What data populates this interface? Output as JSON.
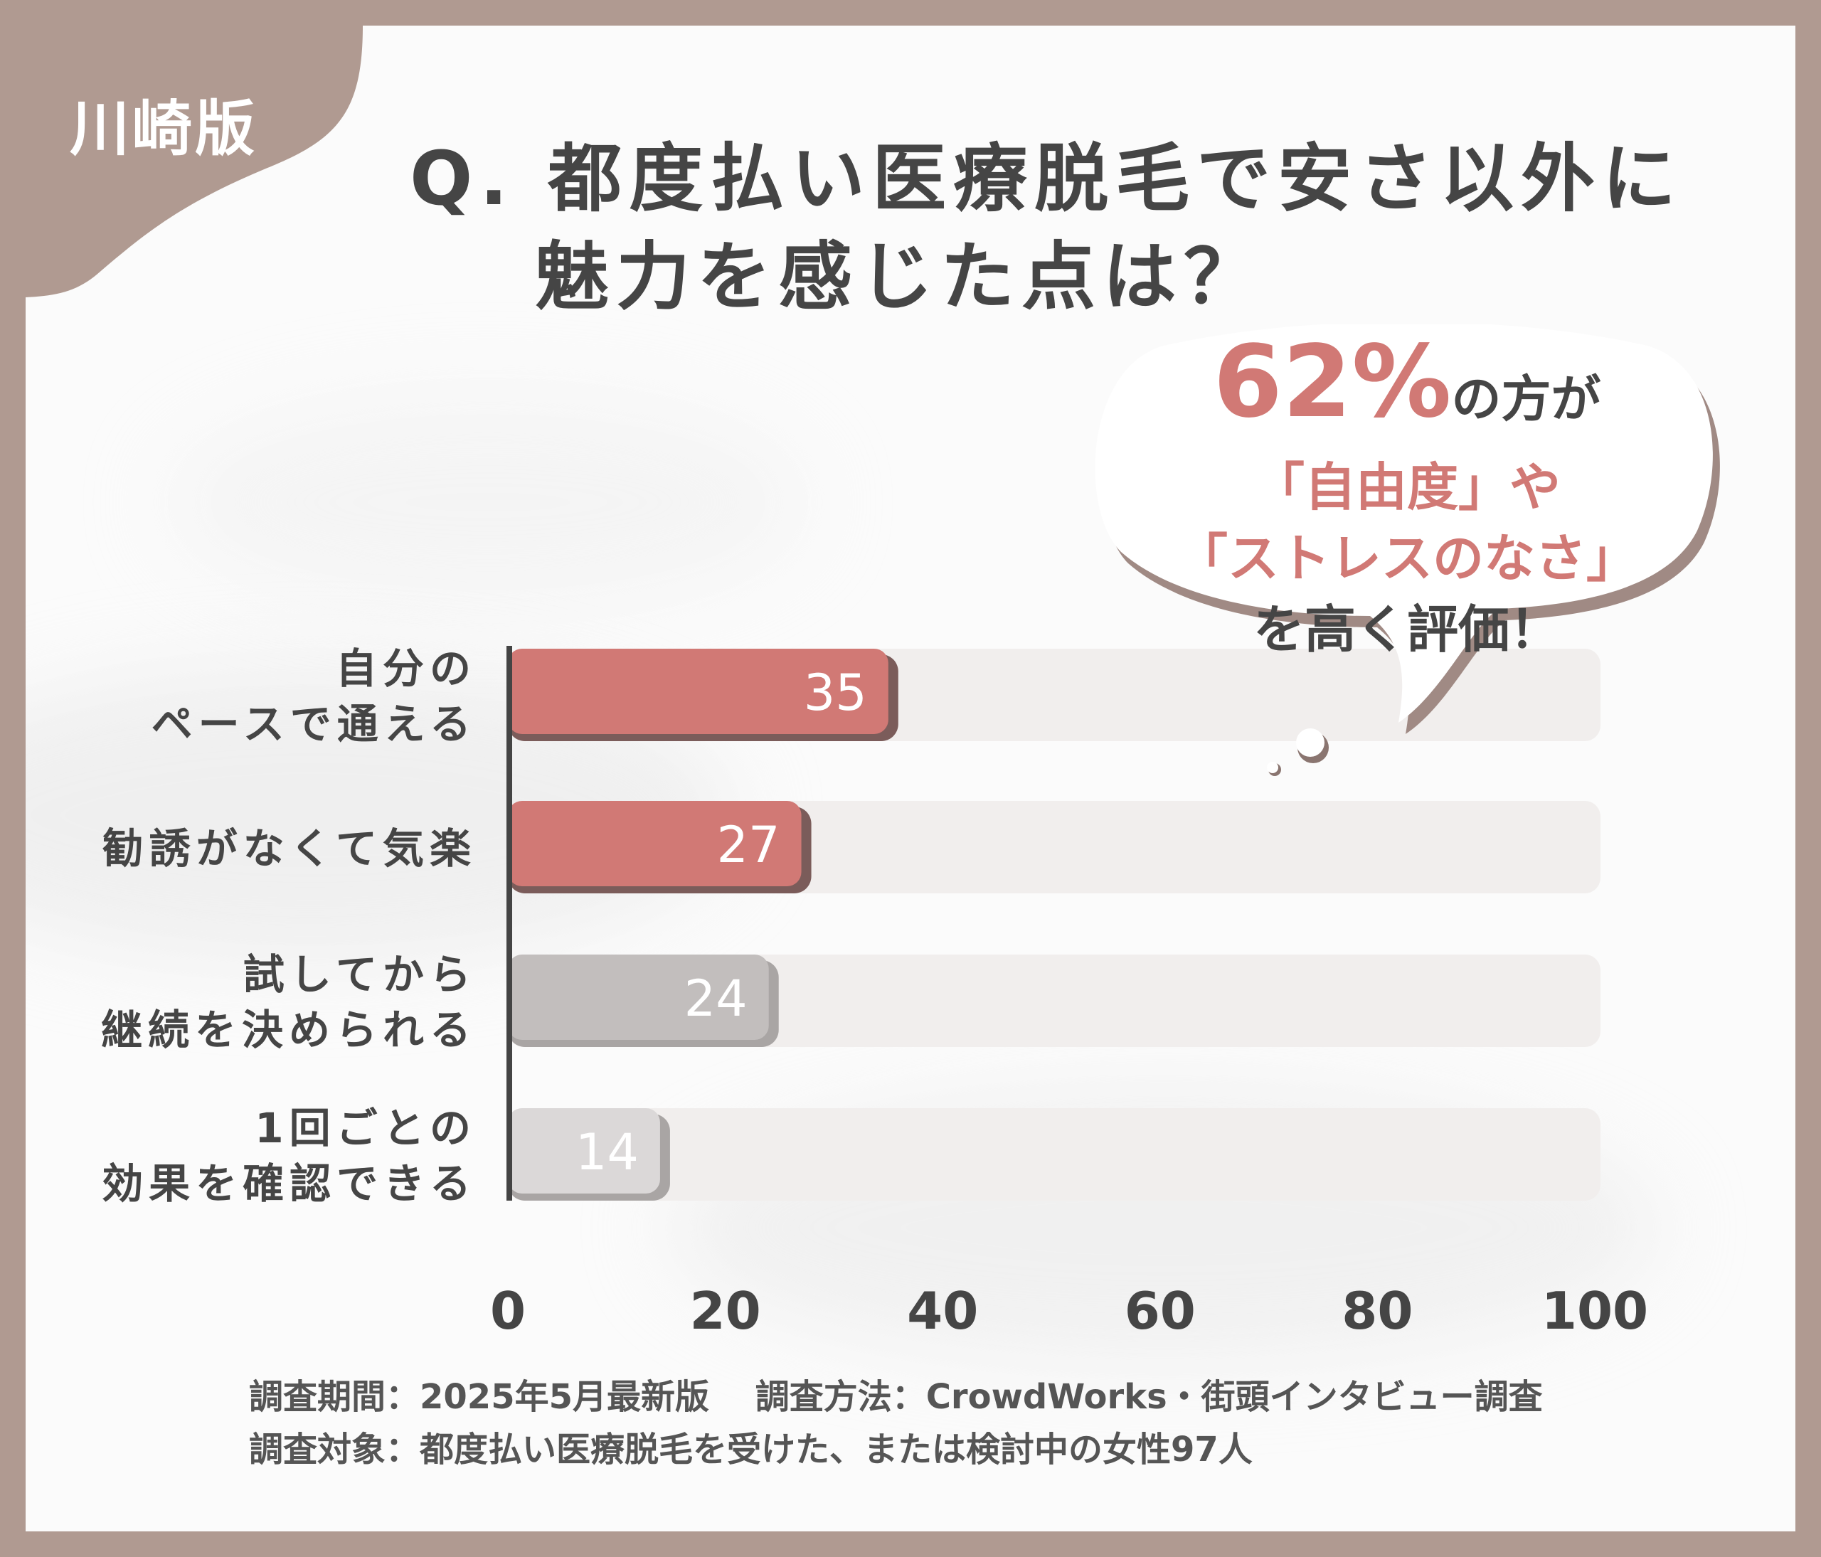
{
  "region_tag": "川崎版",
  "title": {
    "line1": "Q. 都度払い医療脱毛で安さ以外に",
    "line2": "魅力を感じた点は？"
  },
  "callout": {
    "percent": "62%",
    "suffix": "の方が",
    "line2": "「自由度」や",
    "line3": "「ストレスのなさ」",
    "line4": "を高く評価！"
  },
  "colors": {
    "highlight": "#d17975",
    "highlight_shadow": "#7b5c5a",
    "gray_dark": "#c2bebd",
    "gray_light": "#dbd8d8",
    "track": "#f1eeed",
    "brand": "#b09a91"
  },
  "chart_data": {
    "type": "bar",
    "orientation": "horizontal",
    "categories": [
      [
        "自分の",
        "ペースで通える"
      ],
      [
        "勧誘がなくて気楽"
      ],
      [
        "試してから",
        "継続を決められる"
      ],
      [
        "1回ごとの",
        "効果を確認できる"
      ]
    ],
    "values": [
      35,
      27,
      24,
      14
    ],
    "xlim": [
      0,
      100
    ],
    "xticks": [
      0,
      20,
      40,
      60,
      80,
      100
    ],
    "bar_colors": [
      "#d17975",
      "#d17975",
      "#c2bebd",
      "#dbd8d8"
    ],
    "grid": false,
    "legend": "none"
  },
  "footer": {
    "line1": "調査期間：2025年5月最新版　 調査方法：CrowdWorks・街頭インタビュー調査",
    "line2": "調査対象：都度払い医療脱毛を受けた、または検討中の女性97人"
  }
}
